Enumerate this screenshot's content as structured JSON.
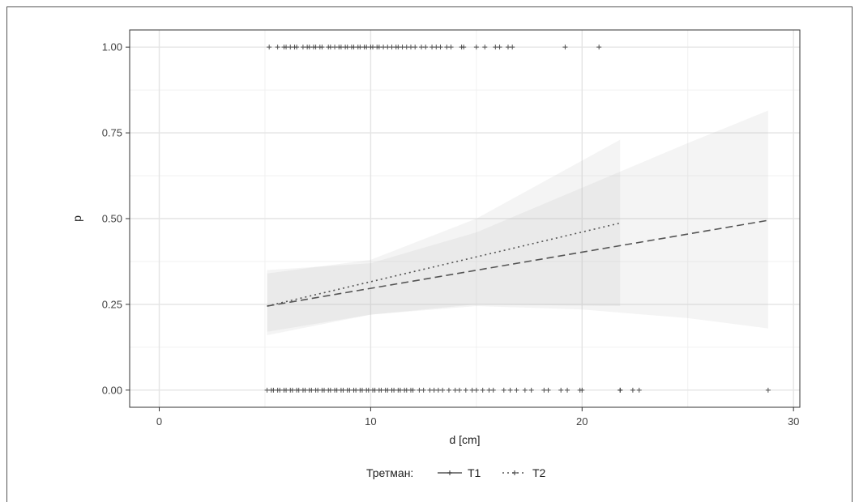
{
  "chart_data": {
    "type": "scatter",
    "title": "",
    "xlabel": "d [cm]",
    "ylabel": "p",
    "xlim": [
      -1.4,
      30.3
    ],
    "ylim": [
      -0.05,
      1.05
    ],
    "x_ticks": [
      "0",
      "10",
      "20",
      "30"
    ],
    "y_ticks": [
      "0.00",
      "0.25",
      "0.50",
      "0.75",
      "1.00"
    ],
    "x_tick_values": [
      0,
      10,
      20,
      30
    ],
    "y_tick_values": [
      0,
      0.25,
      0.5,
      0.75,
      1.0
    ],
    "grid": true,
    "legend_title": "Третман:",
    "legend_position": "bottom",
    "series": [
      {
        "name": "T1",
        "line_style": "dashed",
        "fit": {
          "x": [
            5.1,
            28.8
          ],
          "y": [
            0.245,
            0.495
          ]
        },
        "ci_lower": [
          [
            5.1,
            0.17
          ],
          [
            10,
            0.22
          ],
          [
            15,
            0.245
          ],
          [
            20,
            0.235
          ],
          [
            25,
            0.21
          ],
          [
            28.8,
            0.18
          ]
        ],
        "ci_upper": [
          [
            5.1,
            0.35
          ],
          [
            10,
            0.37
          ],
          [
            15,
            0.46
          ],
          [
            20,
            0.59
          ],
          [
            25,
            0.72
          ],
          [
            28.8,
            0.815
          ]
        ],
        "points_y1": [
          5.2,
          5.9,
          6.2,
          6.5,
          7.0,
          7.3,
          7.6,
          8.1,
          8.5,
          8.8,
          9.1,
          9.4,
          9.7,
          10.1,
          10.4,
          10.8,
          11.2,
          11.5,
          11.9,
          12.4,
          12.9,
          13.3,
          13.6,
          14.3,
          15.0,
          15.9,
          16.7,
          19.2
        ],
        "points_y0": [
          5.1,
          5.4,
          5.7,
          6.0,
          6.3,
          6.6,
          6.9,
          7.2,
          7.5,
          7.8,
          8.1,
          8.4,
          8.7,
          9.0,
          9.3,
          9.6,
          9.9,
          10.2,
          10.5,
          10.8,
          11.1,
          11.4,
          11.7,
          12.0,
          12.5,
          13.0,
          13.4,
          14.0,
          14.5,
          15.0,
          15.6,
          16.3,
          16.9,
          17.6,
          18.4,
          19.0,
          19.9,
          21.8,
          22.4,
          22.7,
          28.8
        ]
      },
      {
        "name": "T2",
        "line_style": "dotted",
        "fit": {
          "x": [
            5.1,
            21.8
          ],
          "y": [
            0.245,
            0.487
          ]
        },
        "ci_lower": [
          [
            5.1,
            0.16
          ],
          [
            10,
            0.22
          ],
          [
            15,
            0.25
          ],
          [
            21.8,
            0.245
          ]
        ],
        "ci_upper": [
          [
            5.1,
            0.34
          ],
          [
            10,
            0.38
          ],
          [
            15,
            0.5
          ],
          [
            21.8,
            0.73
          ]
        ],
        "points_y1": [
          5.6,
          6.0,
          6.4,
          6.8,
          7.1,
          7.4,
          7.7,
          8.0,
          8.3,
          8.6,
          8.9,
          9.2,
          9.5,
          9.8,
          10.0,
          10.3,
          10.6,
          11.0,
          11.3,
          11.7,
          12.1,
          12.6,
          13.1,
          13.8,
          14.4,
          15.4,
          16.1,
          16.5,
          20.8
        ],
        "points_y0": [
          5.3,
          5.6,
          5.9,
          6.2,
          6.5,
          6.8,
          7.1,
          7.4,
          7.7,
          8.0,
          8.3,
          8.6,
          8.9,
          9.2,
          9.5,
          9.8,
          10.1,
          10.4,
          10.7,
          11.0,
          11.3,
          11.6,
          11.9,
          12.3,
          12.8,
          13.2,
          13.7,
          14.2,
          14.8,
          15.3,
          15.8,
          16.6,
          17.3,
          18.2,
          19.3,
          20.0,
          21.8
        ]
      }
    ]
  }
}
